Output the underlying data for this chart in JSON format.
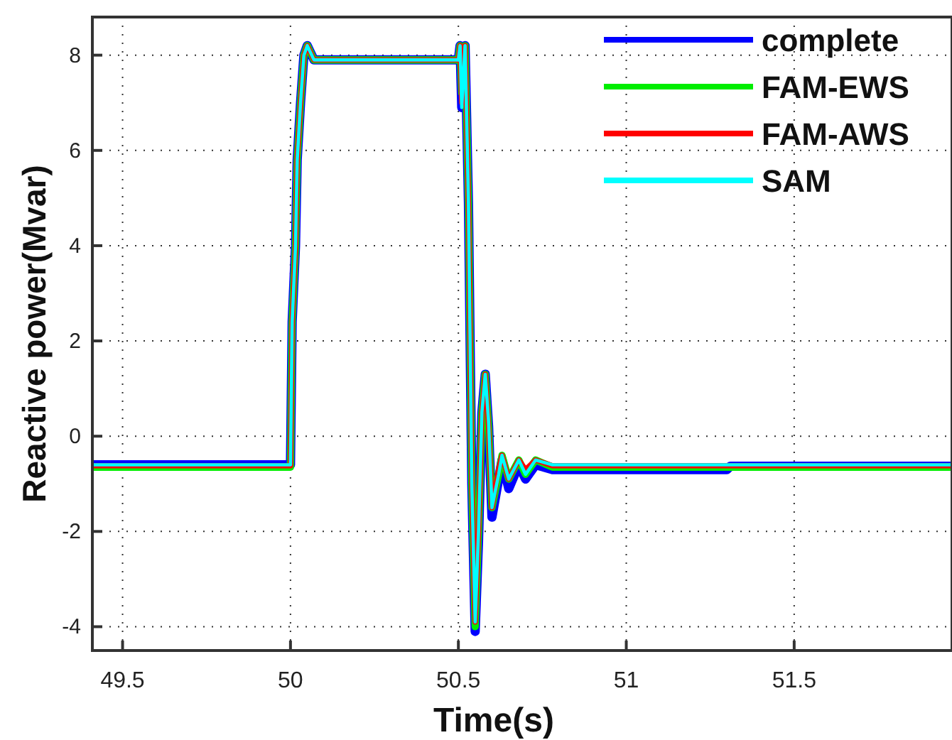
{
  "chart_data": {
    "type": "line",
    "xlabel": "Time(s)",
    "ylabel": "Reactive power(Mvar)",
    "xlim": [
      49.41,
      51.97
    ],
    "ylim": [
      -4.5,
      8.8
    ],
    "xticks": [
      49.5,
      50,
      50.5,
      51,
      51.5
    ],
    "yticks": [
      -4,
      -2,
      0,
      2,
      4,
      6,
      8
    ],
    "grid": true,
    "legend": "top right",
    "line_style": "solid",
    "series": [
      {
        "name": "complete",
        "color": "#0000ff",
        "x": [
          49.41,
          50.0,
          50.005,
          50.015,
          50.02,
          50.03,
          50.04,
          50.05,
          50.07,
          50.5,
          50.505,
          50.51,
          50.52,
          50.53,
          50.54,
          50.55,
          50.56,
          50.57,
          50.58,
          50.59,
          50.6,
          50.62,
          50.63,
          50.65,
          50.68,
          50.7,
          50.73,
          50.78,
          51.3,
          51.31,
          51.97
        ],
        "values": [
          -0.6,
          -0.6,
          2.4,
          4,
          5.8,
          7,
          8,
          8.2,
          7.9,
          7.9,
          8.2,
          6.9,
          8.2,
          4.9,
          -1,
          -4.1,
          -2.2,
          0.5,
          1.3,
          0.2,
          -1.7,
          -0.9,
          -0.5,
          -1.1,
          -0.6,
          -0.9,
          -0.6,
          -0.7,
          -0.7,
          -0.63,
          -0.63
        ]
      },
      {
        "name": "FAM-EWS",
        "color": "#00ee00",
        "x": [
          49.41,
          50.0,
          50.005,
          50.015,
          50.02,
          50.03,
          50.04,
          50.05,
          50.07,
          50.5,
          50.505,
          50.51,
          50.52,
          50.53,
          50.54,
          50.55,
          50.56,
          50.57,
          50.58,
          50.59,
          50.6,
          50.62,
          50.63,
          50.65,
          50.68,
          50.7,
          50.73,
          50.78,
          51.97
        ],
        "values": [
          -0.65,
          -0.65,
          2.4,
          4,
          5.8,
          7,
          8,
          8.2,
          7.9,
          7.9,
          8.2,
          7.2,
          8.2,
          4.9,
          -1,
          -4,
          -2,
          0.5,
          1.3,
          0.2,
          -1.5,
          -0.8,
          -0.4,
          -0.9,
          -0.5,
          -0.8,
          -0.5,
          -0.65,
          -0.65
        ]
      },
      {
        "name": "FAM-AWS",
        "color": "#ff0000",
        "x": [
          49.41,
          50.0,
          50.005,
          50.015,
          50.02,
          50.03,
          50.04,
          50.05,
          50.07,
          50.5,
          50.505,
          50.51,
          50.52,
          50.53,
          50.54,
          50.55,
          50.56,
          50.57,
          50.58,
          50.59,
          50.6,
          50.62,
          50.63,
          50.65,
          50.68,
          50.7,
          50.73,
          50.78,
          51.97
        ],
        "values": [
          -0.62,
          -0.62,
          2.4,
          4,
          5.8,
          7,
          8,
          8.2,
          7.9,
          7.9,
          8.2,
          7,
          8.2,
          4.9,
          -1,
          -3.9,
          -2,
          0.5,
          1.3,
          0.2,
          -1.5,
          -0.7,
          -0.4,
          -0.9,
          -0.5,
          -0.7,
          -0.5,
          -0.62,
          -0.62
        ]
      },
      {
        "name": "SAM",
        "color": "#00ffff",
        "x": [
          49.41,
          50.0,
          50.005,
          50.015,
          50.02,
          50.03,
          50.04,
          50.05,
          50.07,
          50.5,
          50.505,
          50.51,
          50.52,
          50.53,
          50.54,
          50.55,
          50.56,
          50.57,
          50.58,
          50.59,
          50.6,
          50.62,
          50.63,
          50.65,
          50.68,
          50.7,
          50.73,
          50.78,
          51.97
        ],
        "values": [
          -0.6,
          -0.6,
          2.4,
          4,
          5.8,
          7,
          8,
          8.2,
          7.9,
          7.9,
          8.2,
          6.9,
          8.2,
          4.9,
          -1,
          -3.9,
          -2,
          0.5,
          1.3,
          0.3,
          -1.5,
          -0.8,
          -0.4,
          -0.9,
          -0.5,
          -0.8,
          -0.5,
          -0.6,
          -0.6
        ]
      }
    ]
  }
}
